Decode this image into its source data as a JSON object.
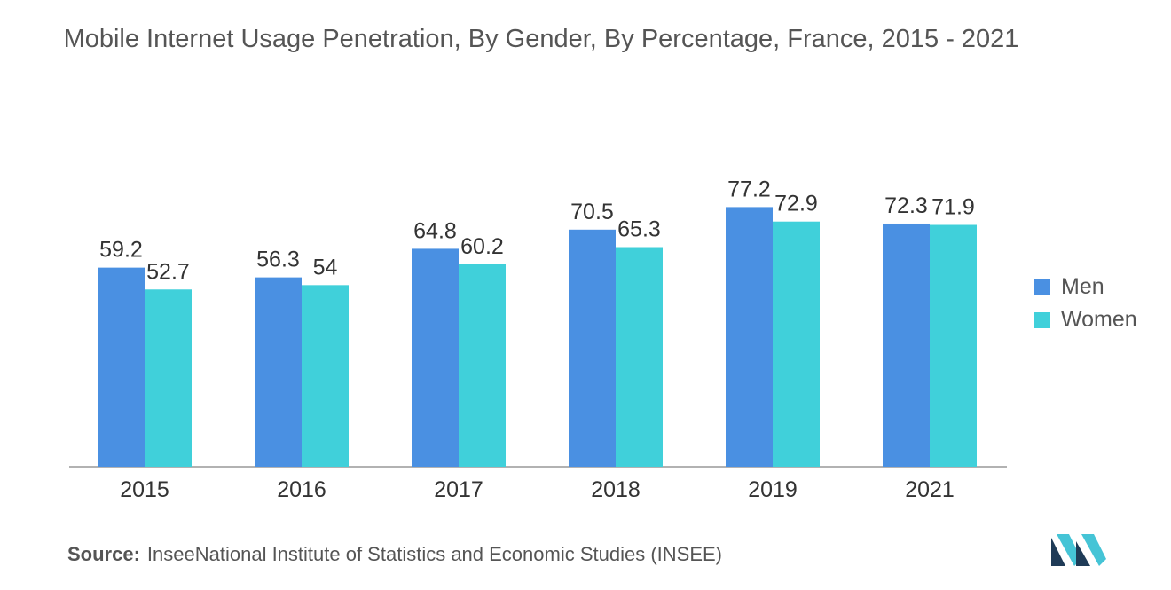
{
  "title": "Mobile Internet Usage Penetration, By Gender, By Percentage, France, 2015 - 2021",
  "source_label": "Source:",
  "source_text": "InseeNational Institute of Statistics and Economic Studies (INSEE)",
  "colors": {
    "men": "#4a90e2",
    "women": "#40d0da",
    "axis": "#555555"
  },
  "chart_data": {
    "type": "bar",
    "categories": [
      "2015",
      "2016",
      "2017",
      "2018",
      "2019",
      "2021"
    ],
    "series": [
      {
        "name": "Men",
        "values": [
          59.2,
          56.3,
          64.8,
          70.5,
          77.2,
          72.3
        ]
      },
      {
        "name": "Women",
        "values": [
          52.7,
          54,
          60.2,
          65.3,
          72.9,
          71.9
        ]
      }
    ],
    "legend_position": "right",
    "grid": false
  }
}
